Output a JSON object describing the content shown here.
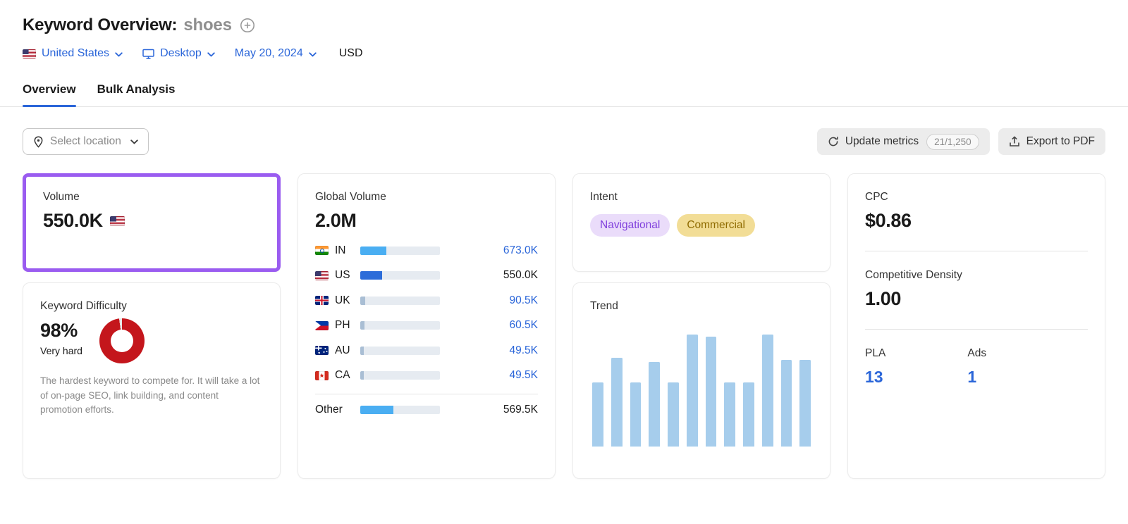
{
  "colors": {
    "link_blue": "#2b66d9",
    "highlight_purple": "#9a5cf0",
    "difficulty_red": "#c4161c",
    "trend_bar": "#a6cdec",
    "bar_fill_light": "#4aaef2",
    "bar_fill_dark": "#2c6cd9",
    "bar_fill_muted": "#a9bed4"
  },
  "icons": {
    "add_keyword": "circled-plus",
    "chevron_down": "chevron-down",
    "desktop": "monitor",
    "location_pin": "map-pin",
    "refresh": "circular-arrow",
    "export": "upload-arrow",
    "us_flag": "us-flag"
  },
  "header": {
    "title": "Keyword Overview:",
    "keyword": "shoes",
    "filters": {
      "country": "United States",
      "device": "Desktop",
      "date": "May 20, 2024",
      "currency": "USD"
    }
  },
  "tabs": {
    "overview": "Overview",
    "bulk": "Bulk Analysis"
  },
  "toolbar": {
    "select_location": "Select location",
    "update_metrics": "Update metrics",
    "quota": "21/1,250",
    "export_pdf": "Export to PDF"
  },
  "cards": {
    "volume": {
      "label": "Volume",
      "value": "550.0K"
    },
    "difficulty": {
      "label": "Keyword Difficulty",
      "value": "98%",
      "percent": 98,
      "level": "Very hard",
      "description": "The hardest keyword to compete for. It will take a lot of on-page SEO, link building, and content promotion efforts."
    },
    "global_volume": {
      "label": "Global Volume",
      "value": "2.0M",
      "rows": [
        {
          "code": "IN",
          "value": "673.0K",
          "pct": 33
        },
        {
          "code": "US",
          "value": "550.0K",
          "pct": 27
        },
        {
          "code": "UK",
          "value": "90.5K",
          "pct": 6
        },
        {
          "code": "PH",
          "value": "60.5K",
          "pct": 5
        },
        {
          "code": "AU",
          "value": "49.5K",
          "pct": 4
        },
        {
          "code": "CA",
          "value": "49.5K",
          "pct": 4
        },
        {
          "code": "Other",
          "value": "569.5K",
          "pct": 42
        }
      ]
    },
    "intent": {
      "label": "Intent",
      "badges": [
        {
          "label": "Navigational",
          "bg": "#eadcfa",
          "fg": "#8040dd"
        },
        {
          "label": "Commercial",
          "bg": "#f2dd96",
          "fg": "#8f6b00"
        }
      ]
    },
    "trend": {
      "label": "Trend"
    },
    "cpc": {
      "label": "CPC",
      "value": "$0.86"
    },
    "competitive_density": {
      "label": "Competitive Density",
      "value": "1.00"
    },
    "pla": {
      "label": "PLA",
      "value": "13"
    },
    "ads": {
      "label": "Ads",
      "value": "1"
    }
  },
  "chart_data": [
    {
      "type": "bar",
      "title": "Trend",
      "x": [
        "1",
        "2",
        "3",
        "4",
        "5",
        "6",
        "7",
        "8",
        "9",
        "10",
        "11",
        "12"
      ],
      "values": [
        55,
        76,
        55,
        72,
        55,
        96,
        94,
        55,
        55,
        96,
        74,
        74
      ],
      "xlabel": "",
      "ylabel": "",
      "ylim": [
        0,
        100
      ],
      "grid": false,
      "legend": false,
      "units": "relative bar height, percent of plot height; tick labels not shown"
    },
    {
      "type": "bar",
      "title": "Global Volume",
      "categories": [
        "IN",
        "US",
        "UK",
        "PH",
        "AU",
        "CA",
        "Other"
      ],
      "values": [
        673000,
        550000,
        90500,
        60500,
        49500,
        49500,
        569500
      ],
      "labels": [
        "673.0K",
        "550.0K",
        "90.5K",
        "60.5K",
        "49.5K",
        "49.5K",
        "569.5K"
      ],
      "total_label": "2.0M"
    }
  ]
}
